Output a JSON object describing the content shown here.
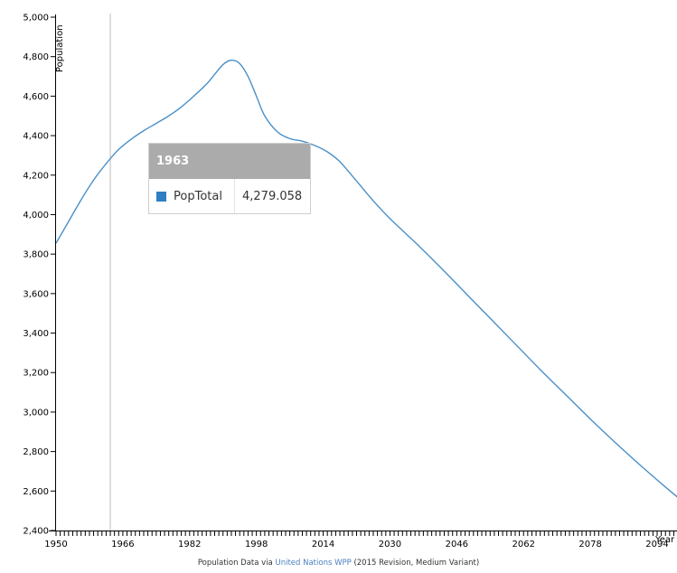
{
  "chart_data": {
    "type": "line",
    "xlabel": "Year",
    "ylabel": "Population",
    "xlim": [
      1950,
      2100
    ],
    "ylim": [
      2400,
      5000
    ],
    "x_ticks": [
      "1950",
      "1966",
      "1982",
      "1998",
      "2014",
      "2030",
      "2046",
      "2062",
      "2078",
      "2094"
    ],
    "y_ticks": [
      "2,400",
      "2,600",
      "2,800",
      "3,000",
      "3,200",
      "3,400",
      "3,600",
      "3,800",
      "4,000",
      "4,200",
      "4,400",
      "4,600",
      "4,800",
      "5,000"
    ],
    "grid": false,
    "series": [
      {
        "name": "PopTotal",
        "color": "#4a90c8",
        "x": [
          1950,
          1953,
          1956,
          1959,
          1962,
          1965,
          1968,
          1971,
          1974,
          1977,
          1980,
          1983,
          1986,
          1988,
          1990,
          1992,
          1994,
          1996,
          1998,
          2000,
          2003,
          2006,
          2009,
          2012,
          2015,
          2018,
          2022,
          2026,
          2030,
          2036,
          2042,
          2048,
          2054,
          2060,
          2066,
          2072,
          2078,
          2084,
          2090,
          2096,
          2100
        ],
        "values": [
          3855,
          3965,
          4075,
          4175,
          4258,
          4330,
          4382,
          4425,
          4462,
          4500,
          4545,
          4600,
          4660,
          4710,
          4760,
          4782,
          4765,
          4700,
          4600,
          4500,
          4420,
          4385,
          4372,
          4350,
          4318,
          4268,
          4170,
          4070,
          3980,
          3860,
          3735,
          3605,
          3475,
          3345,
          3215,
          3090,
          2965,
          2845,
          2730,
          2620,
          2550
        ]
      }
    ],
    "cursor_x": 1963
  },
  "tooltip": {
    "year": "1963",
    "series_name": "PopTotal",
    "value": "4,279.058",
    "swatch_color": "#2f7ec2"
  },
  "footer": {
    "prefix": "Population Data via ",
    "link": "United Nations WPP",
    "suffix": " (2015 Revision, Medium Variant)"
  }
}
